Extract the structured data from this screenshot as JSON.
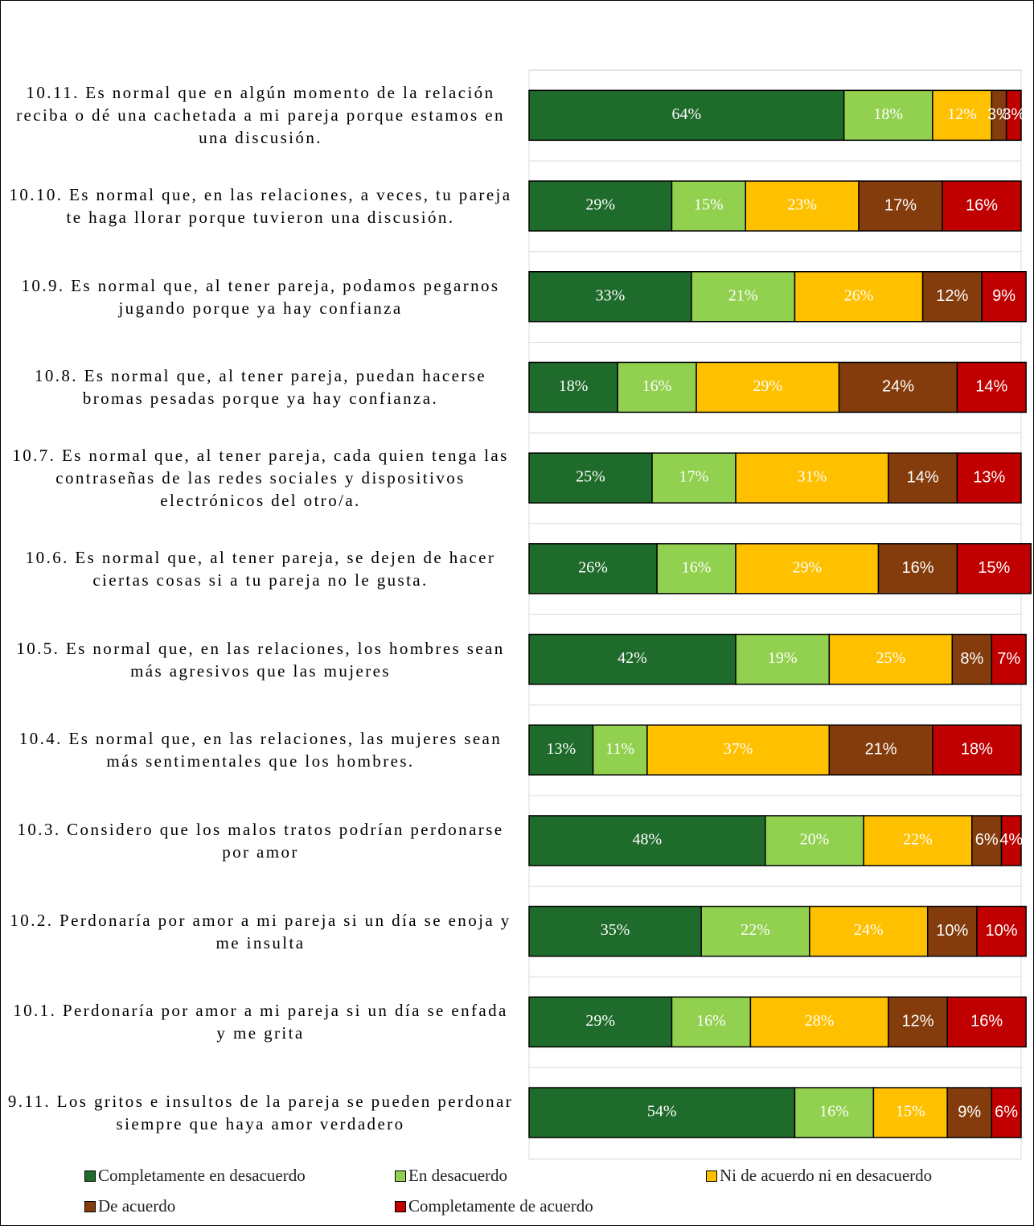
{
  "chart_data": {
    "type": "stacked-barh",
    "categories": [
      "10.11. Es normal que en algún momento de la relación reciba o dé una cachetada a mi pareja porque estamos en una discusión.",
      "10.10. Es normal que, en las relaciones, a veces, tu pareja te haga llorar porque tuvieron una discusión.",
      "10.9. Es normal que, al tener pareja, podamos pegarnos jugando porque ya hay confianza",
      "10.8. Es normal que, al tener pareja, puedan hacerse bromas pesadas porque ya hay confianza.",
      "10.7. Es normal que, al tener pareja, cada quien tenga las contraseñas de las redes sociales y dispositivos electrónicos del otro/a.",
      "10.6. Es normal que, al tener pareja, se dejen de hacer ciertas cosas si a tu pareja no le gusta.",
      "10.5. Es normal que, en las relaciones, los hombres sean más agresivos que las mujeres",
      "10.4. Es normal que, en las relaciones, las mujeres sean más sentimentales que los hombres.",
      "10.3. Considero que los malos tratos podrían perdonarse por amor",
      "10.2. Perdonaría por amor a mi pareja si un día se enoja y me insulta",
      "10.1. Perdonaría por amor a mi pareja si un día se enfada y me grita",
      "9.11. Los gritos e insultos de la pareja se pueden perdonar siempre que haya amor verdadero"
    ],
    "series": [
      {
        "name": "Completamente en desacuerdo",
        "color": "#1f6b2b",
        "values": [
          64,
          29,
          33,
          18,
          25,
          26,
          42,
          13,
          48,
          35,
          29,
          54
        ],
        "value_labels": [
          "64%",
          "29%",
          "33%",
          "18%",
          "25%",
          "26%",
          "42%",
          "13%",
          "48%",
          "35%",
          "29%",
          "54%"
        ]
      },
      {
        "name": "En desacuerdo",
        "color": "#92d050",
        "values": [
          18,
          15,
          21,
          16,
          17,
          16,
          19,
          11,
          20,
          22,
          16,
          16
        ],
        "value_labels": [
          "18%",
          "15%",
          "21%",
          "16%",
          "17%",
          "16%",
          "19%",
          "11%",
          "20%",
          "22%",
          "16%",
          "16%"
        ]
      },
      {
        "name": "Ni de acuerdo ni en desacuerdo",
        "color": "#ffc000",
        "values": [
          12,
          23,
          26,
          29,
          31,
          29,
          25,
          37,
          22,
          24,
          28,
          15
        ],
        "value_labels": [
          "12%",
          "23%",
          "26%",
          "29%",
          "31%",
          "29%",
          "25%",
          "37%",
          "22%",
          "24%",
          "28%",
          "15%"
        ]
      },
      {
        "name": "De acuerdo",
        "color": "#843c0c",
        "values": [
          3,
          17,
          12,
          24,
          14,
          16,
          8,
          21,
          6,
          10,
          12,
          9
        ],
        "value_labels": [
          "3%",
          "17%",
          "12%",
          "24%",
          "14%",
          "16%",
          "8%",
          "21%",
          "6%",
          "10%",
          "12%",
          "9%"
        ]
      },
      {
        "name": "Completamente de acuerdo",
        "color": "#c00000",
        "values": [
          3,
          16,
          9,
          14,
          13,
          15,
          7,
          18,
          4,
          10,
          16,
          6
        ],
        "value_labels": [
          "3%",
          "16%",
          "9%",
          "14%",
          "13%",
          "15%",
          "7%",
          "18%",
          "4%",
          "10%",
          "16%",
          "6%"
        ]
      }
    ],
    "xlim": [
      0,
      100
    ]
  }
}
